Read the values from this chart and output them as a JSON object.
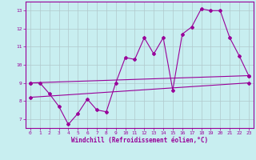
{
  "xlabel": "Windchill (Refroidissement éolien,°C)",
  "xlim": [
    -0.5,
    23.5
  ],
  "ylim": [
    6.5,
    13.5
  ],
  "yticks": [
    7,
    8,
    9,
    10,
    11,
    12,
    13
  ],
  "xticks": [
    0,
    1,
    2,
    3,
    4,
    5,
    6,
    7,
    8,
    9,
    10,
    11,
    12,
    13,
    14,
    15,
    16,
    17,
    18,
    19,
    20,
    21,
    22,
    23
  ],
  "bg_color": "#c8eef0",
  "grid_color": "#b0c8cc",
  "line_color": "#990099",
  "line1_x": [
    0,
    1,
    2,
    3,
    4,
    5,
    6,
    7,
    8,
    9,
    10,
    11,
    12,
    13,
    14,
    15,
    16,
    17,
    18,
    19,
    20,
    21,
    22,
    23
  ],
  "line1_y": [
    9.0,
    9.0,
    8.4,
    7.7,
    6.7,
    7.3,
    8.1,
    7.5,
    7.4,
    9.0,
    10.4,
    10.3,
    11.5,
    10.6,
    11.5,
    8.6,
    11.7,
    12.1,
    13.1,
    13.0,
    13.0,
    11.5,
    10.5,
    9.4
  ],
  "line2_x": [
    0,
    23
  ],
  "line2_y": [
    9.0,
    9.4
  ],
  "line3_x": [
    0,
    23
  ],
  "line3_y": [
    8.2,
    9.0
  ],
  "marker": "D",
  "marker_size": 2.0,
  "linewidth": 0.8,
  "tick_fontsize": 4.5,
  "xlabel_fontsize": 5.5,
  "tick_color": "#990099",
  "axis_color": "#990099",
  "xlabel_fontfamily": "monospace"
}
